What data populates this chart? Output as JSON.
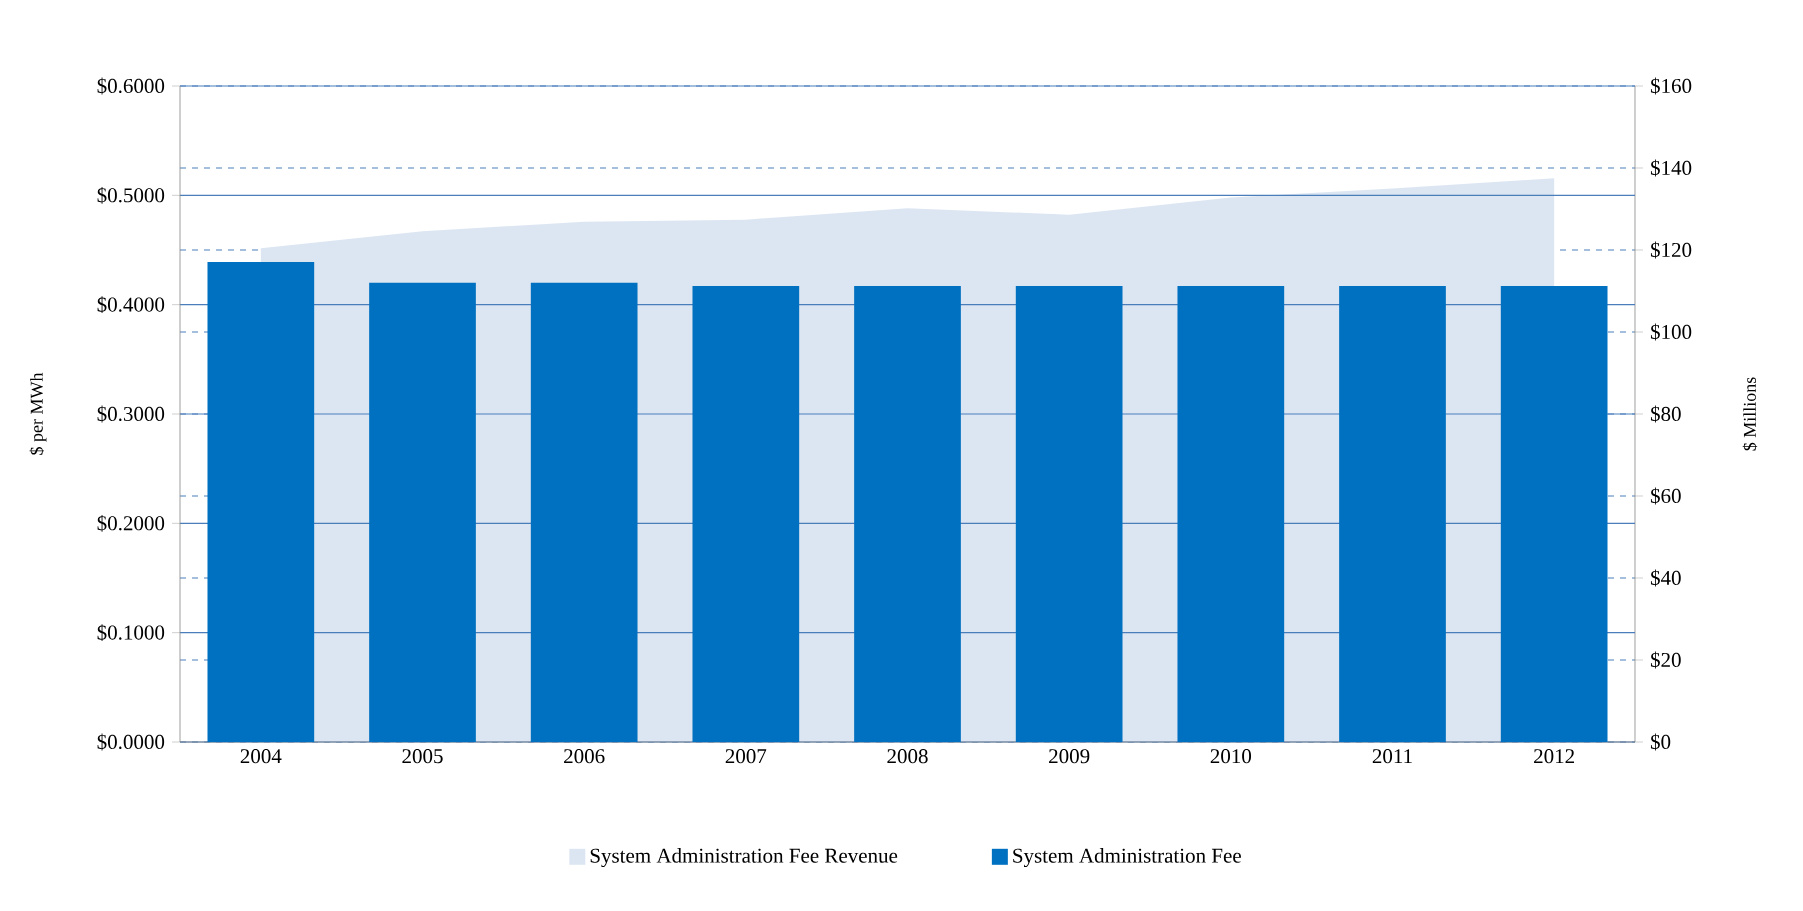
{
  "chart_data": {
    "type": "bar",
    "ylabel": "$ per MWh",
    "y2label": "$ Millions",
    "categories": [
      "2004",
      "2005",
      "2006",
      "2007",
      "2008",
      "2009",
      "2010",
      "2011",
      "2012"
    ],
    "series": [
      {
        "name": "System Administration Fee Revenue",
        "type": "area",
        "axis": "y2",
        "color": "#dce6f2",
        "values": [
          120.4,
          124.6,
          126.9,
          127.4,
          130.2,
          128.6,
          132.8,
          135.0,
          137.5
        ]
      },
      {
        "name": "System Administration Fee",
        "color": "#0070c0",
        "values": [
          0.439,
          0.42,
          0.42,
          0.417,
          0.417,
          0.417,
          0.417,
          0.417,
          0.417
        ]
      }
    ],
    "ylim": [
      0,
      0.6
    ],
    "yticks": [
      {
        "value": 0,
        "label": "$0.0000"
      },
      {
        "value": 0.1,
        "label": "$0.1000"
      },
      {
        "value": 0.2,
        "label": "$0.2000"
      },
      {
        "value": 0.3,
        "label": "$0.3000"
      },
      {
        "value": 0.4,
        "label": "$0.4000"
      },
      {
        "value": 0.5,
        "label": "$0.5000"
      },
      {
        "value": 0.6,
        "label": "$0.6000"
      }
    ],
    "y2lim": [
      0,
      160
    ],
    "y2ticks": [
      {
        "value": 0,
        "label": "$0"
      },
      {
        "value": 20,
        "label": "$20"
      },
      {
        "value": 40,
        "label": "$40"
      },
      {
        "value": 60,
        "label": "$60"
      },
      {
        "value": 80,
        "label": "$80"
      },
      {
        "value": 100,
        "label": "$100"
      },
      {
        "value": 120,
        "label": "$120"
      },
      {
        "value": 140,
        "label": "$140"
      },
      {
        "value": 160,
        "label": "$160"
      }
    ],
    "grid": "y",
    "legend": "bottom"
  }
}
